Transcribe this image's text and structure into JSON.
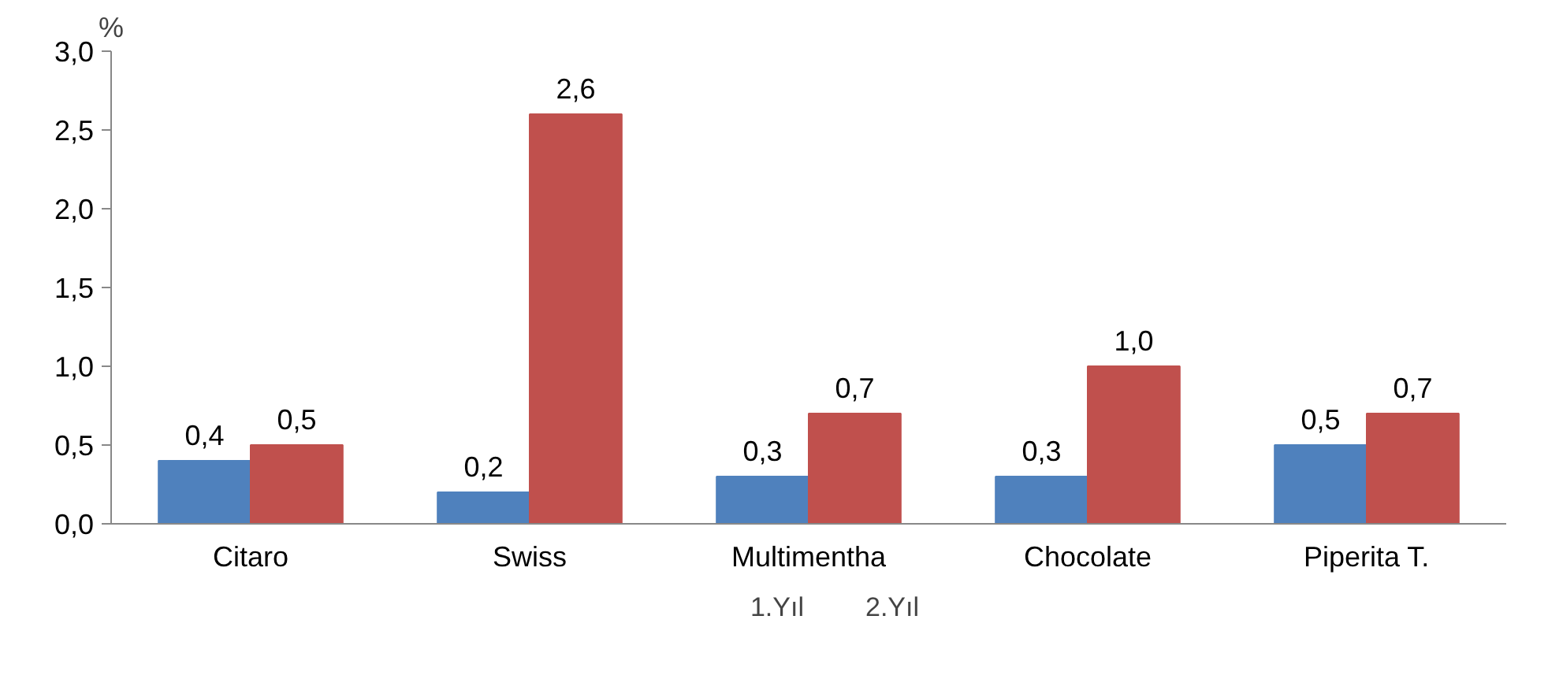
{
  "chart_data": {
    "type": "bar",
    "ylabel": "%",
    "categories": [
      "Citaro",
      "Swiss",
      "Multimentha",
      "Chocolate",
      "Piperita T."
    ],
    "series": [
      {
        "name": "1.Yıl",
        "color": "#4f81bd",
        "values": [
          0.4,
          0.2,
          0.3,
          0.3,
          0.5
        ],
        "value_labels": [
          "0,4",
          "0,2",
          "0,3",
          "0,3",
          "0,5"
        ]
      },
      {
        "name": "2.Yıl",
        "color": "#c0504d",
        "values": [
          0.5,
          2.6,
          0.7,
          1.0,
          0.7
        ],
        "value_labels": [
          "0,5",
          "2,6",
          "0,7",
          "1,0",
          "0,7"
        ]
      }
    ],
    "ylim": [
      0,
      3
    ],
    "yticks": [
      {
        "value": 0,
        "label": "0,0"
      },
      {
        "value": 0.5,
        "label": "0,5"
      },
      {
        "value": 1,
        "label": "1,0"
      },
      {
        "value": 1.5,
        "label": "1,5"
      },
      {
        "value": 2,
        "label": "2,0"
      },
      {
        "value": 2.5,
        "label": "2,5"
      },
      {
        "value": 3,
        "label": "3,0"
      }
    ],
    "grid": false,
    "legend": "bottom"
  }
}
